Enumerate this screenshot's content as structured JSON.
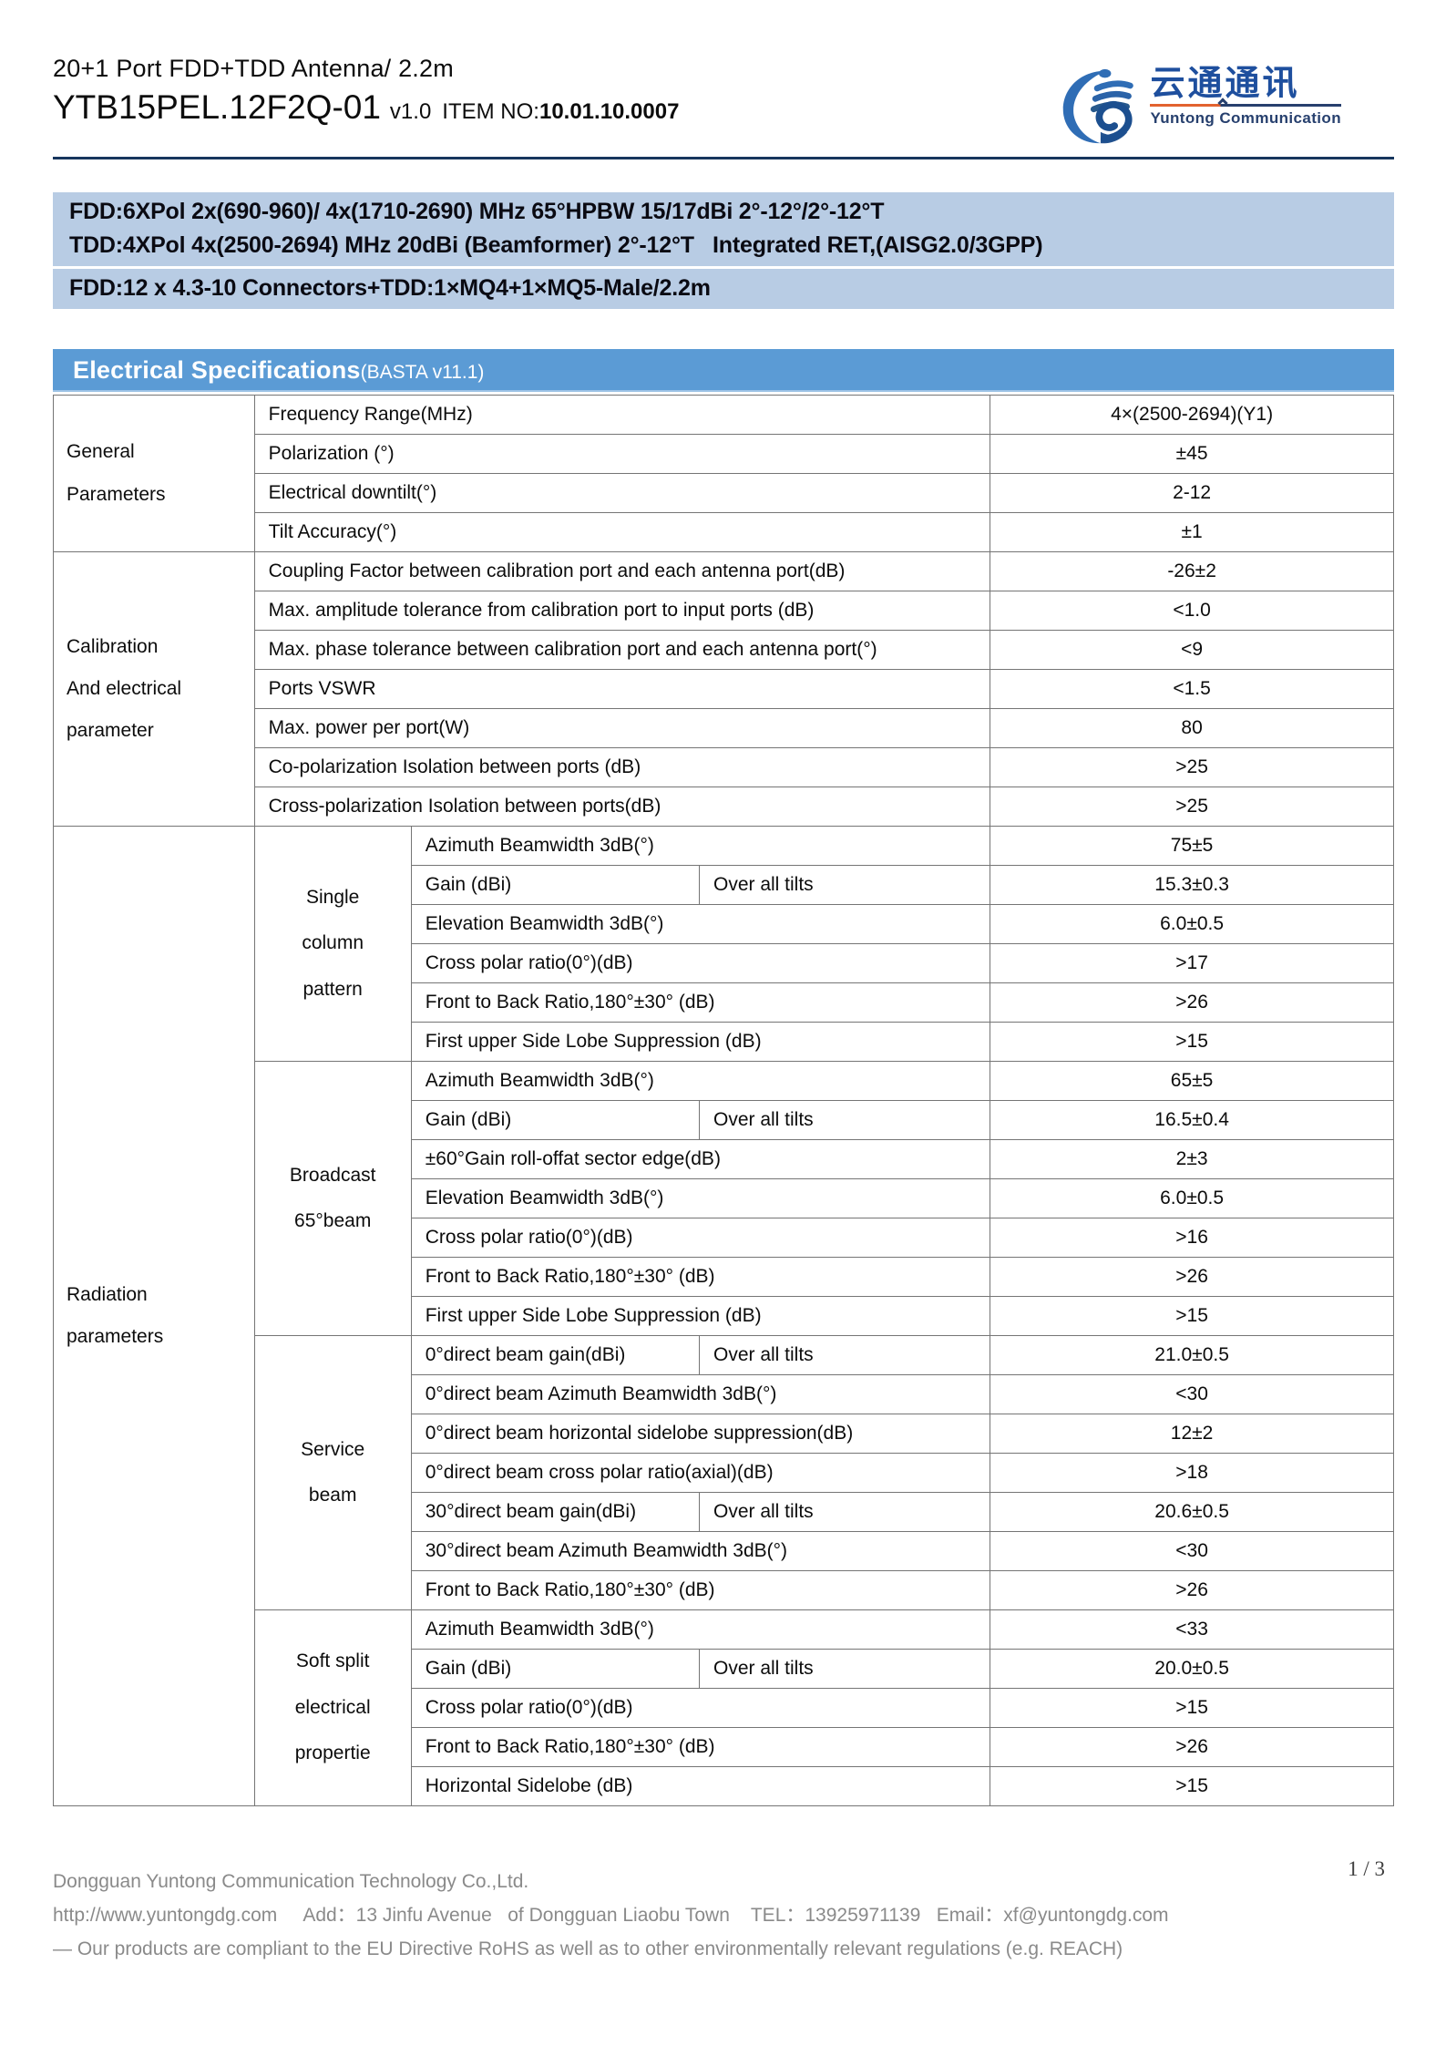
{
  "header": {
    "title_line1": "20+1 Port FDD+TDD Antenna/ 2.2m",
    "model": "YTB15PEL.12F2Q-01",
    "version": "v1.0",
    "item_no_label": "ITEM NO:",
    "item_no": "10.01.10.0007",
    "logo": {
      "cn": "云通通讯",
      "en": "Yuntong Communication",
      "brand_blue": "#1e4f9e",
      "accent_orange": "#e2622f"
    }
  },
  "banner": {
    "bg_color": "#b8cce4",
    "line1": "FDD:6XPol 2x(690-960)/ 4x(1710-2690) MHz 65°HPBW 15/17dBi 2°-12°/2°-12°T",
    "line2": "TDD:4XPol 4x(2500-2694) MHz 20dBi (Beamformer) 2°-12°T   Integrated RET,(AISG2.0/3GPP)",
    "line3": "FDD:12 x 4.3-10 Connectors+TDD:1×MQ4+1×MQ5-Male/2.2m"
  },
  "spec_table": {
    "title": "Electrical Specifications",
    "subtitle": "(BASTA v11.1)",
    "header_bg": "#5b9bd5",
    "sections": [
      {
        "label_lines": [
          "General",
          "Parameters"
        ],
        "rows": [
          {
            "param": "Frequency Range(MHz)",
            "value": "4×(2500-2694)(Y1)"
          },
          {
            "param": "Polarization (°)",
            "value": "±45"
          },
          {
            "param": "Electrical downtilt(°)",
            "value": "2-12"
          },
          {
            "param": "Tilt Accuracy(°)",
            "value": "±1"
          }
        ]
      },
      {
        "label_lines": [
          "Calibration",
          "And electrical",
          "parameter"
        ],
        "rows": [
          {
            "param": "Coupling Factor between calibration port and each antenna port(dB)",
            "value": "-26±2"
          },
          {
            "param": "Max. amplitude tolerance from calibration port to input ports (dB)",
            "value": "<1.0"
          },
          {
            "param": "Max. phase tolerance between calibration port and each antenna port(°)",
            "value": "<9"
          },
          {
            "param": "Ports VSWR",
            "value": "<1.5"
          },
          {
            "param": "Max. power per port(W)",
            "value": "80"
          },
          {
            "param": "Co-polarization Isolation between ports (dB)",
            "value": ">25"
          },
          {
            "param": "Cross-polarization Isolation between ports(dB)",
            "value": ">25"
          }
        ]
      },
      {
        "label_lines": [
          "Radiation",
          "parameters"
        ],
        "groups": [
          {
            "label_lines": [
              "Single",
              "column",
              "pattern"
            ],
            "rows": [
              {
                "param": "Azimuth Beamwidth 3dB(°)",
                "value": "75±5"
              },
              {
                "param": "Gain (dBi)",
                "note": "Over all tilts",
                "value": "15.3±0.3"
              },
              {
                "param": "Elevation Beamwidth 3dB(°)",
                "value": "6.0±0.5"
              },
              {
                "param": "Cross polar ratio(0°)(dB)",
                "value": ">17"
              },
              {
                "param": "Front to Back Ratio,180°±30° (dB)",
                "value": ">26"
              },
              {
                "param": "First upper Side Lobe Suppression (dB)",
                "value": ">15"
              }
            ]
          },
          {
            "label_lines": [
              "Broadcast",
              "65°beam"
            ],
            "rows": [
              {
                "param": "Azimuth Beamwidth 3dB(°)",
                "value": "65±5"
              },
              {
                "param": "Gain (dBi)",
                "note": "Over all tilts",
                "value": "16.5±0.4"
              },
              {
                "param": "±60°Gain roll-offat sector edge(dB)",
                "value": "2±3"
              },
              {
                "param": "Elevation Beamwidth 3dB(°)",
                "value": "6.0±0.5"
              },
              {
                "param": "Cross polar ratio(0°)(dB)",
                "value": ">16"
              },
              {
                "param": "Front to Back Ratio,180°±30° (dB)",
                "value": ">26"
              },
              {
                "param": "First upper Side Lobe Suppression (dB)",
                "value": ">15"
              }
            ]
          },
          {
            "label_lines": [
              "Service",
              "beam"
            ],
            "rows": [
              {
                "param": "0°direct beam gain(dBi)",
                "note": "Over all tilts",
                "value": "21.0±0.5"
              },
              {
                "param": "0°direct beam Azimuth Beamwidth 3dB(°)",
                "value": "<30"
              },
              {
                "param": "0°direct beam horizontal sidelobe suppression(dB)",
                "value": "12±2"
              },
              {
                "param": "0°direct beam cross polar ratio(axial)(dB)",
                "value": ">18"
              },
              {
                "param": "30°direct beam gain(dBi)",
                "note": "Over all tilts",
                "value": "20.6±0.5"
              },
              {
                "param": "30°direct beam Azimuth Beamwidth 3dB(°)",
                "value": "<30"
              },
              {
                "param": "Front to Back Ratio,180°±30° (dB)",
                "value": ">26"
              }
            ]
          },
          {
            "label_lines": [
              "Soft split",
              "electrical",
              "propertie"
            ],
            "rows": [
              {
                "param": "Azimuth Beamwidth 3dB(°)",
                "value": "<33"
              },
              {
                "param": "Gain (dBi)",
                "note": "Over all tilts",
                "value": "20.0±0.5"
              },
              {
                "param": "Cross polar ratio(0°)(dB)",
                "value": ">15"
              },
              {
                "param": "Front to Back Ratio,180°±30° (dB)",
                "value": ">26"
              },
              {
                "param": "Horizontal Sidelobe (dB)",
                "value": ">15"
              }
            ]
          }
        ]
      }
    ]
  },
  "footer": {
    "page_number": "1 / 3",
    "company": "Dongguan Yuntong Communication Technology Co.,Ltd.",
    "contact": "http://www.yuntongdg.com     Add：13 Jinfu Avenue   of Dongguan Liaobu Town    TEL：13925971139   Email：xf@yuntongdg.com",
    "compliance": "— Our products are compliant to the EU Directive RoHS as well as to other environmentally relevant regulations (e.g. REACH)"
  }
}
